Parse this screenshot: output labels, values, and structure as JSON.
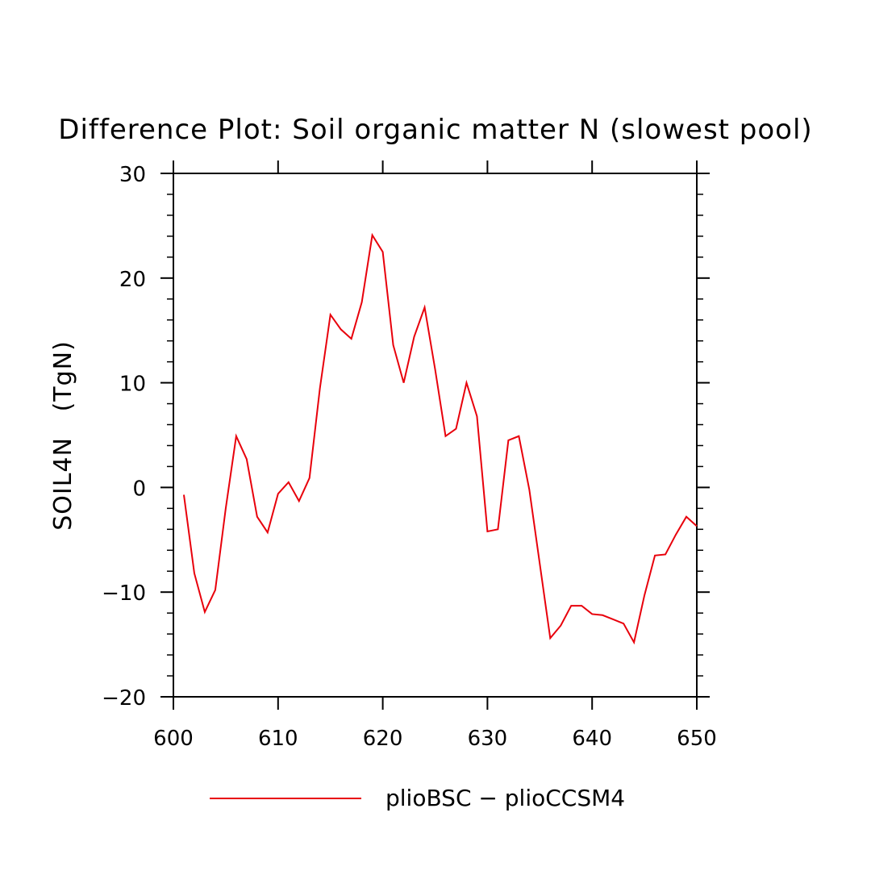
{
  "chart_data": {
    "type": "line",
    "title": "Difference Plot: Soil organic matter N (slowest pool)",
    "xlabel": "",
    "ylabel": "SOIL4N   (TgN)",
    "xlim": [
      600,
      650
    ],
    "ylim": [
      -20,
      30
    ],
    "x_ticks": [
      600,
      610,
      620,
      630,
      640,
      650
    ],
    "x_tick_labels": [
      "600",
      "610",
      "620",
      "630",
      "640",
      "650"
    ],
    "y_ticks": [
      -20,
      -10,
      0,
      10,
      20,
      30
    ],
    "y_tick_labels": [
      "−20",
      "−10",
      "0",
      "10",
      "20",
      "30"
    ],
    "grid": false,
    "legend_position": "bottom",
    "series": [
      {
        "name": "plioBSC − plioCCSM4",
        "color": "#e8000b",
        "x": [
          601,
          602,
          603,
          604,
          605,
          606,
          607,
          608,
          609,
          610,
          611,
          612,
          613,
          614,
          615,
          616,
          617,
          618,
          619,
          620,
          621,
          622,
          623,
          624,
          625,
          626,
          627,
          628,
          629,
          630,
          631,
          632,
          633,
          634,
          635,
          636,
          637,
          638,
          639,
          640,
          641,
          642,
          643,
          644,
          645,
          646,
          647,
          648,
          649,
          650
        ],
        "y": [
          -0.7,
          -8.2,
          -11.9,
          -9.8,
          -2.0,
          4.9,
          2.7,
          -2.8,
          -4.3,
          -0.6,
          0.5,
          -1.3,
          0.9,
          9.5,
          16.5,
          15.1,
          14.2,
          17.7,
          24.1,
          22.5,
          13.6,
          10.0,
          14.4,
          17.2,
          11.3,
          4.9,
          5.6,
          10.0,
          6.8,
          -4.2,
          -4.0,
          4.5,
          4.9,
          -0.2,
          -7.3,
          -14.4,
          -13.2,
          -11.3,
          -11.3,
          -12.1,
          -12.2,
          -12.6,
          -13.0,
          -14.8,
          -10.3,
          -6.5,
          -6.4,
          -4.5,
          -2.8,
          -3.7
        ]
      }
    ],
    "legend_label": "plioBSC − plioCCSM4"
  }
}
